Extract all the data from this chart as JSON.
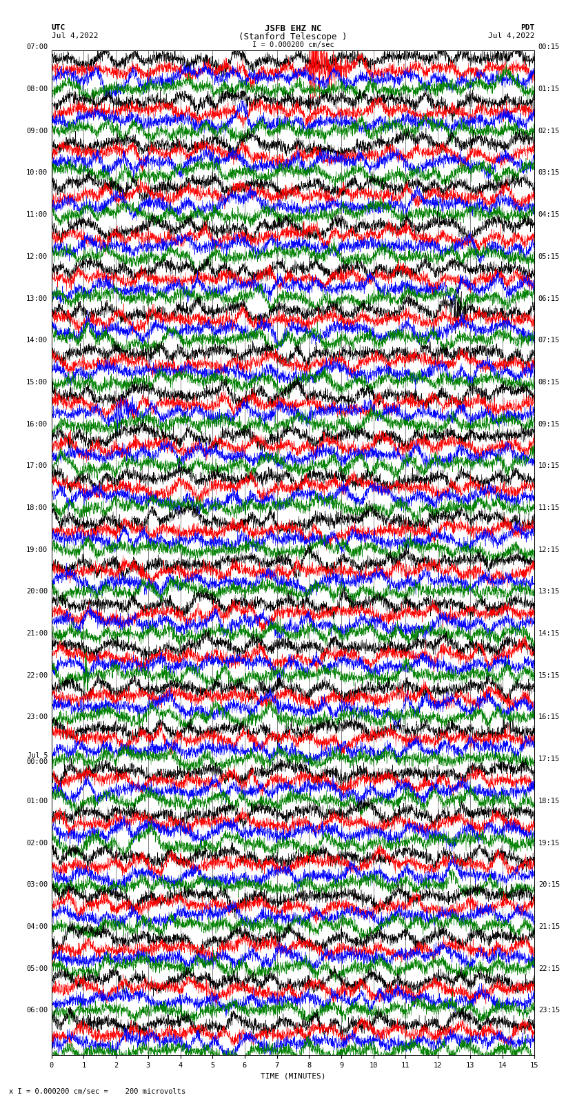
{
  "title_line1": "JSFB EHZ NC",
  "title_line2": "(Stanford Telescope )",
  "scale_label": "I = 0.000200 cm/sec",
  "footer_label": "x I = 0.000200 cm/sec =    200 microvolts",
  "utc_label": "UTC",
  "utc_date": "Jul 4,2022",
  "pdt_label": "PDT",
  "pdt_date": "Jul 4,2022",
  "xlabel": "TIME (MINUTES)",
  "left_times_utc": [
    "07:00",
    "08:00",
    "09:00",
    "10:00",
    "11:00",
    "12:00",
    "13:00",
    "14:00",
    "15:00",
    "16:00",
    "17:00",
    "18:00",
    "19:00",
    "20:00",
    "21:00",
    "22:00",
    "23:00",
    "Jul 5\n00:00",
    "01:00",
    "02:00",
    "03:00",
    "04:00",
    "05:00",
    "06:00"
  ],
  "right_times_pdt": [
    "00:15",
    "01:15",
    "02:15",
    "03:15",
    "04:15",
    "05:15",
    "06:15",
    "07:15",
    "08:15",
    "09:15",
    "10:15",
    "11:15",
    "12:15",
    "13:15",
    "14:15",
    "15:15",
    "16:15",
    "17:15",
    "18:15",
    "19:15",
    "20:15",
    "21:15",
    "22:15",
    "23:15"
  ],
  "trace_colors": [
    "black",
    "red",
    "blue",
    "green"
  ],
  "n_rows": 24,
  "traces_per_row": 4,
  "x_min": 0,
  "x_max": 15,
  "x_ticks": [
    0,
    1,
    2,
    3,
    4,
    5,
    6,
    7,
    8,
    9,
    10,
    11,
    12,
    13,
    14,
    15
  ],
  "background_color": "white",
  "title_fontsize": 9,
  "label_fontsize": 8,
  "tick_fontsize": 7.5
}
